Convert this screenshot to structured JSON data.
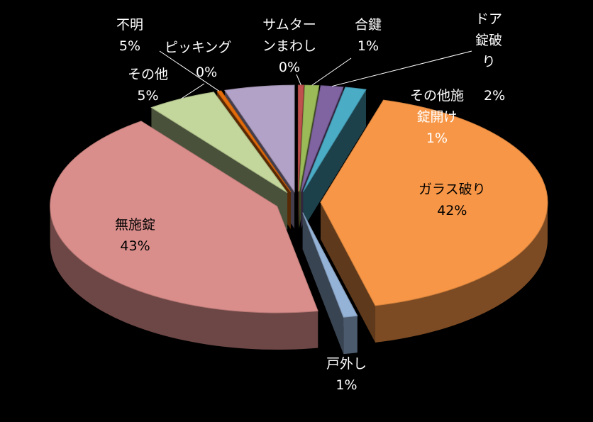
{
  "chart_data": {
    "type": "pie",
    "title": "",
    "slices": [
      {
        "key": "safe_turning",
        "label_lines": [
          "サムター",
          "ンまわし"
        ],
        "pct_label": "0%",
        "value": 0.4,
        "color": "#c0504d"
      },
      {
        "key": "duplicate_key",
        "label_lines": [
          "合鍵"
        ],
        "pct_label": "1%",
        "value": 1,
        "color": "#9bbb59"
      },
      {
        "key": "lock_breaking",
        "label_lines": [
          "ドア",
          "錠破",
          "り"
        ],
        "pct_label": "2%",
        "value": 1.6,
        "color": "#8064a2"
      },
      {
        "key": "other_unlocking",
        "label_lines": [
          "その他施",
          "錠開け"
        ],
        "pct_label": "1%",
        "value": 1.5,
        "color": "#4bacc6"
      },
      {
        "key": "glass_breaking",
        "label_lines": [
          "ガラス破り"
        ],
        "pct_label": "42%",
        "value": 42,
        "color": "#f79646"
      },
      {
        "key": "door_removal",
        "label_lines": [
          "戸外し"
        ],
        "pct_label": "1%",
        "value": 1,
        "color": "#95b3d7"
      },
      {
        "key": "unlocked",
        "label_lines": [
          "無施錠"
        ],
        "pct_label": "43%",
        "value": 43,
        "color": "#da8e8b"
      },
      {
        "key": "other",
        "label_lines": [
          "その他"
        ],
        "pct_label": "5%",
        "value": 5,
        "color": "#c3d69b"
      },
      {
        "key": "picking",
        "label_lines": [
          "ピッキング"
        ],
        "pct_label": "0%",
        "value": 0.3,
        "color": "#e46c0a"
      },
      {
        "key": "unknown",
        "label_lines": [
          "不明"
        ],
        "pct_label": "5%",
        "value": 5,
        "color": "#b3a2c7"
      }
    ]
  }
}
